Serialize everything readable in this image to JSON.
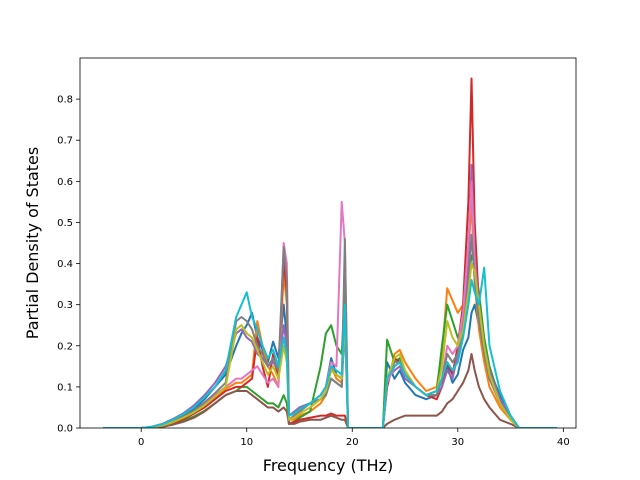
{
  "chart_data": {
    "type": "line",
    "title": "",
    "xlabel": "Frequency (THz)",
    "ylabel": "Partial Density of States",
    "xlim": [
      -5.8,
      41.2
    ],
    "ylim": [
      0,
      0.9
    ],
    "xticks": [
      0,
      10,
      20,
      30,
      40
    ],
    "yticks": [
      0.0,
      0.1,
      0.2,
      0.3,
      0.4,
      0.5,
      0.6,
      0.7,
      0.8
    ],
    "ytick_labels": [
      "0.0",
      "0.1",
      "0.2",
      "0.3",
      "0.4",
      "0.5",
      "0.6",
      "0.7",
      "0.8"
    ],
    "grid": false,
    "legend": "none",
    "x": [
      -3.6,
      -1,
      0,
      1,
      2,
      3,
      4,
      5,
      6,
      7,
      8,
      9,
      9.5,
      10,
      10.5,
      11,
      11.5,
      12,
      12.5,
      13,
      13.5,
      13.8,
      14,
      14.5,
      15,
      16,
      17,
      17.5,
      18,
      18.5,
      19,
      19.3,
      19.6,
      20,
      21,
      22,
      22.9,
      23.3,
      24,
      24.5,
      25,
      26,
      27,
      28,
      28.5,
      29,
      29.5,
      30,
      30.5,
      31,
      31.3,
      31.6,
      32,
      32.5,
      33,
      34,
      35,
      35.8,
      37,
      39.4
    ],
    "series": [
      {
        "color": "#1f77b4",
        "values": [
          0,
          0,
          0,
          0.002,
          0.008,
          0.018,
          0.03,
          0.045,
          0.07,
          0.1,
          0.13,
          0.2,
          0.23,
          0.25,
          0.28,
          0.22,
          0.19,
          0.16,
          0.21,
          0.17,
          0.3,
          0.22,
          0.02,
          0.03,
          0.05,
          0.06,
          0.08,
          0.1,
          0.17,
          0.13,
          0.12,
          0.3,
          0,
          0,
          0,
          0,
          0,
          0.16,
          0.12,
          0.14,
          0.11,
          0.08,
          0.07,
          0.08,
          0.12,
          0.15,
          0.11,
          0.13,
          0.19,
          0.22,
          0.28,
          0.3,
          0.25,
          0.18,
          0.14,
          0.08,
          0.03,
          0,
          0,
          0
        ]
      },
      {
        "color": "#ff7f0e",
        "values": [
          0,
          0,
          0,
          0.002,
          0.006,
          0.014,
          0.025,
          0.038,
          0.055,
          0.075,
          0.095,
          0.11,
          0.11,
          0.12,
          0.13,
          0.26,
          0.2,
          0.15,
          0.13,
          0.1,
          0.38,
          0.3,
          0.02,
          0.02,
          0.03,
          0.04,
          0.06,
          0.08,
          0.15,
          0.12,
          0.11,
          0.28,
          0,
          0,
          0,
          0,
          0,
          0.1,
          0.18,
          0.19,
          0.16,
          0.12,
          0.09,
          0.1,
          0.18,
          0.34,
          0.31,
          0.28,
          0.3,
          0.43,
          0.55,
          0.35,
          0.24,
          0.16,
          0.1,
          0.05,
          0.02,
          0,
          0,
          0
        ]
      },
      {
        "color": "#2ca02c",
        "values": [
          0,
          0,
          0,
          0.001,
          0.004,
          0.01,
          0.018,
          0.028,
          0.042,
          0.06,
          0.08,
          0.09,
          0.1,
          0.1,
          0.09,
          0.08,
          0.07,
          0.06,
          0.06,
          0.05,
          0.08,
          0.06,
          0.01,
          0.015,
          0.025,
          0.04,
          0.15,
          0.23,
          0.25,
          0.2,
          0.18,
          0.33,
          0,
          0,
          0,
          0,
          0,
          0.215,
          0.16,
          0.17,
          0.13,
          0.1,
          0.08,
          0.09,
          0.2,
          0.3,
          0.26,
          0.22,
          0.25,
          0.36,
          0.42,
          0.4,
          0.33,
          0.22,
          0.15,
          0.07,
          0.02,
          0,
          0,
          0
        ]
      },
      {
        "color": "#d62728",
        "values": [
          0,
          0,
          0,
          0.002,
          0.005,
          0.012,
          0.022,
          0.035,
          0.05,
          0.07,
          0.09,
          0.1,
          0.1,
          0.11,
          0.12,
          0.22,
          0.15,
          0.1,
          0.18,
          0.12,
          0.41,
          0.33,
          0.01,
          0.015,
          0.02,
          0.025,
          0.03,
          0.03,
          0.035,
          0.03,
          0.03,
          0.03,
          0,
          0,
          0,
          0,
          0,
          0.1,
          0.17,
          0.16,
          0.13,
          0.1,
          0.08,
          0.07,
          0.1,
          0.16,
          0.13,
          0.2,
          0.3,
          0.55,
          0.85,
          0.5,
          0.3,
          0.2,
          0.13,
          0.06,
          0.02,
          0,
          0,
          0
        ]
      },
      {
        "color": "#9467bd",
        "values": [
          0,
          0,
          0,
          0.003,
          0.01,
          0.022,
          0.036,
          0.055,
          0.08,
          0.11,
          0.15,
          0.23,
          0.24,
          0.22,
          0.21,
          0.18,
          0.17,
          0.15,
          0.16,
          0.14,
          0.25,
          0.2,
          0.03,
          0.04,
          0.05,
          0.06,
          0.07,
          0.08,
          0.12,
          0.11,
          0.1,
          0.25,
          0,
          0,
          0,
          0,
          0,
          0.12,
          0.14,
          0.15,
          0.12,
          0.1,
          0.08,
          0.08,
          0.1,
          0.14,
          0.12,
          0.18,
          0.26,
          0.4,
          0.64,
          0.42,
          0.3,
          0.2,
          0.14,
          0.07,
          0.03,
          0,
          0,
          0
        ]
      },
      {
        "color": "#8c564b",
        "values": [
          0,
          0,
          0,
          0.001,
          0.003,
          0.008,
          0.015,
          0.025,
          0.04,
          0.06,
          0.08,
          0.09,
          0.09,
          0.09,
          0.08,
          0.07,
          0.06,
          0.05,
          0.05,
          0.04,
          0.05,
          0.04,
          0.01,
          0.01,
          0.015,
          0.02,
          0.02,
          0.025,
          0.03,
          0.025,
          0.02,
          0.02,
          0,
          0,
          0,
          0,
          0,
          0.01,
          0.02,
          0.025,
          0.03,
          0.03,
          0.03,
          0.03,
          0.04,
          0.06,
          0.07,
          0.09,
          0.11,
          0.14,
          0.18,
          0.14,
          0.1,
          0.07,
          0.05,
          0.02,
          0.01,
          0,
          0,
          0
        ]
      },
      {
        "color": "#e377c2",
        "values": [
          0,
          0,
          0,
          0.002,
          0.006,
          0.015,
          0.026,
          0.04,
          0.058,
          0.08,
          0.1,
          0.12,
          0.12,
          0.13,
          0.14,
          0.15,
          0.13,
          0.11,
          0.12,
          0.1,
          0.45,
          0.4,
          0.02,
          0.03,
          0.04,
          0.06,
          0.08,
          0.1,
          0.16,
          0.15,
          0.55,
          0.45,
          0,
          0,
          0,
          0,
          0,
          0.11,
          0.15,
          0.16,
          0.13,
          0.1,
          0.08,
          0.08,
          0.12,
          0.2,
          0.18,
          0.2,
          0.28,
          0.45,
          0.6,
          0.4,
          0.28,
          0.18,
          0.12,
          0.06,
          0.02,
          0,
          0,
          0
        ]
      },
      {
        "color": "#7f7f7f",
        "values": [
          0,
          0,
          0,
          0.002,
          0.007,
          0.016,
          0.028,
          0.042,
          0.062,
          0.085,
          0.11,
          0.26,
          0.27,
          0.26,
          0.24,
          0.2,
          0.18,
          0.15,
          0.17,
          0.14,
          0.44,
          0.36,
          0.02,
          0.03,
          0.04,
          0.06,
          0.07,
          0.08,
          0.12,
          0.11,
          0.1,
          0.46,
          0,
          0,
          0,
          0,
          0,
          0.12,
          0.16,
          0.16,
          0.13,
          0.1,
          0.08,
          0.08,
          0.12,
          0.18,
          0.16,
          0.18,
          0.24,
          0.35,
          0.47,
          0.36,
          0.26,
          0.18,
          0.12,
          0.06,
          0.02,
          0,
          0,
          0
        ]
      },
      {
        "color": "#bcbd22",
        "values": [
          0,
          0,
          0,
          0.002,
          0.006,
          0.014,
          0.025,
          0.038,
          0.055,
          0.076,
          0.1,
          0.24,
          0.25,
          0.23,
          0.22,
          0.19,
          0.16,
          0.13,
          0.15,
          0.12,
          0.2,
          0.16,
          0.02,
          0.025,
          0.035,
          0.05,
          0.07,
          0.09,
          0.14,
          0.13,
          0.12,
          0.27,
          0,
          0,
          0,
          0,
          0,
          0.12,
          0.17,
          0.18,
          0.14,
          0.1,
          0.08,
          0.09,
          0.15,
          0.26,
          0.22,
          0.2,
          0.24,
          0.33,
          0.4,
          0.38,
          0.3,
          0.2,
          0.13,
          0.06,
          0.02,
          0,
          0,
          0
        ]
      },
      {
        "color": "#17becf",
        "values": [
          0,
          0,
          0,
          0.003,
          0.009,
          0.02,
          0.034,
          0.05,
          0.075,
          0.1,
          0.14,
          0.27,
          0.3,
          0.33,
          0.27,
          0.24,
          0.2,
          0.17,
          0.19,
          0.15,
          0.22,
          0.18,
          0.03,
          0.035,
          0.045,
          0.06,
          0.08,
          0.1,
          0.15,
          0.14,
          0.13,
          0.3,
          0,
          0,
          0,
          0,
          0,
          0.12,
          0.15,
          0.16,
          0.13,
          0.1,
          0.08,
          0.09,
          0.12,
          0.16,
          0.14,
          0.16,
          0.22,
          0.3,
          0.36,
          0.33,
          0.3,
          0.39,
          0.2,
          0.09,
          0.03,
          0,
          0,
          0
        ]
      }
    ]
  }
}
